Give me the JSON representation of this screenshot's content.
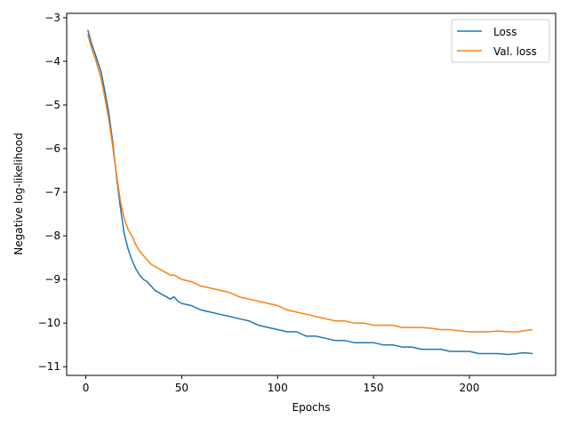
{
  "chart_data": {
    "type": "line",
    "title": "",
    "xlabel": "Epochs",
    "ylabel": "Negative log-likelihood",
    "xlim": [
      -10,
      245
    ],
    "ylim": [
      -11.2,
      -2.9
    ],
    "xticks": [
      0,
      50,
      100,
      150,
      200
    ],
    "xtick_labels": [
      "0",
      "50",
      "100",
      "150",
      "200"
    ],
    "yticks": [
      -11,
      -10,
      -9,
      -8,
      -7,
      -6,
      -5,
      -4,
      -3
    ],
    "ytick_labels": [
      "−11",
      "−10",
      "−9",
      "−8",
      "−7",
      "−6",
      "−5",
      "−4",
      "−3"
    ],
    "grid": false,
    "legend_position": "upper right",
    "series": [
      {
        "name": "Loss",
        "color": "#1f77b4",
        "x": [
          1,
          3,
          5,
          8,
          10,
          12,
          14,
          16,
          18,
          20,
          22,
          24,
          26,
          28,
          30,
          32,
          34,
          36,
          38,
          40,
          42,
          44,
          46,
          48,
          50,
          55,
          60,
          65,
          70,
          75,
          80,
          85,
          90,
          95,
          100,
          105,
          110,
          115,
          120,
          125,
          130,
          135,
          140,
          145,
          150,
          155,
          160,
          165,
          170,
          175,
          180,
          185,
          190,
          195,
          200,
          205,
          210,
          215,
          220,
          225,
          228,
          233
        ],
        "y": [
          -3.28,
          -3.6,
          -3.85,
          -4.25,
          -4.7,
          -5.2,
          -5.85,
          -6.65,
          -7.35,
          -7.95,
          -8.3,
          -8.55,
          -8.75,
          -8.9,
          -9.0,
          -9.05,
          -9.15,
          -9.25,
          -9.3,
          -9.35,
          -9.4,
          -9.45,
          -9.4,
          -9.5,
          -9.55,
          -9.6,
          -9.7,
          -9.75,
          -9.8,
          -9.85,
          -9.9,
          -9.95,
          -10.05,
          -10.1,
          -10.15,
          -10.2,
          -10.2,
          -10.3,
          -10.3,
          -10.35,
          -10.4,
          -10.4,
          -10.45,
          -10.45,
          -10.45,
          -10.5,
          -10.5,
          -10.55,
          -10.55,
          -10.6,
          -10.6,
          -10.6,
          -10.65,
          -10.65,
          -10.65,
          -10.7,
          -10.7,
          -10.7,
          -10.72,
          -10.7,
          -10.68,
          -10.7
        ]
      },
      {
        "name": "Val. loss",
        "color": "#ff7f0e",
        "x": [
          1,
          3,
          5,
          8,
          10,
          12,
          14,
          16,
          18,
          20,
          22,
          24,
          26,
          28,
          30,
          32,
          34,
          36,
          38,
          40,
          42,
          44,
          46,
          48,
          50,
          55,
          60,
          65,
          70,
          75,
          80,
          85,
          90,
          95,
          100,
          105,
          110,
          115,
          120,
          125,
          130,
          135,
          140,
          145,
          150,
          155,
          160,
          165,
          170,
          175,
          180,
          185,
          190,
          195,
          200,
          205,
          210,
          215,
          220,
          225,
          228,
          233
        ],
        "y": [
          -3.38,
          -3.7,
          -3.95,
          -4.4,
          -4.85,
          -5.35,
          -5.95,
          -6.6,
          -7.2,
          -7.6,
          -7.85,
          -8.0,
          -8.2,
          -8.35,
          -8.45,
          -8.55,
          -8.65,
          -8.7,
          -8.75,
          -8.8,
          -8.85,
          -8.9,
          -8.9,
          -8.95,
          -9.0,
          -9.05,
          -9.15,
          -9.2,
          -9.25,
          -9.3,
          -9.4,
          -9.45,
          -9.5,
          -9.55,
          -9.6,
          -9.7,
          -9.75,
          -9.8,
          -9.85,
          -9.9,
          -9.95,
          -9.95,
          -10.0,
          -10.0,
          -10.05,
          -10.05,
          -10.05,
          -10.1,
          -10.1,
          -10.1,
          -10.12,
          -10.15,
          -10.15,
          -10.18,
          -10.2,
          -10.2,
          -10.2,
          -10.18,
          -10.2,
          -10.2,
          -10.18,
          -10.15
        ]
      }
    ]
  }
}
